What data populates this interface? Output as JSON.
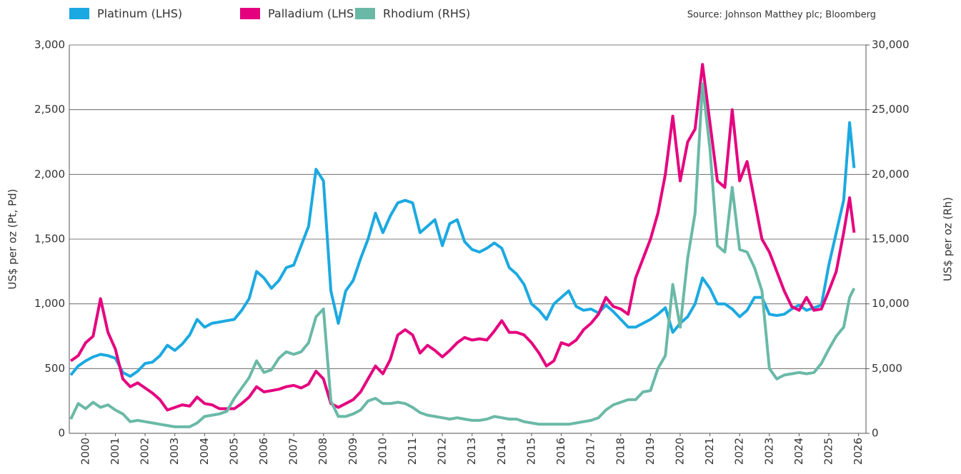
{
  "chart_data": {
    "type": "line",
    "source": "Source: Johnson Matthey plc; Bloomberg",
    "ylabel": "US$ per oz (Pt, Pd)",
    "y2label": "US$ per oz (Rh)",
    "x": [
      2000,
      2000.25,
      2000.5,
      2000.75,
      2001,
      2001.25,
      2001.5,
      2001.75,
      2002,
      2002.25,
      2002.5,
      2002.75,
      2003,
      2003.25,
      2003.5,
      2003.75,
      2004,
      2004.25,
      2004.5,
      2004.75,
      2005,
      2005.25,
      2005.5,
      2005.75,
      2006,
      2006.25,
      2006.5,
      2006.75,
      2007,
      2007.25,
      2007.5,
      2007.75,
      2008,
      2008.25,
      2008.5,
      2008.75,
      2009,
      2009.25,
      2009.5,
      2009.75,
      2010,
      2010.25,
      2010.5,
      2010.75,
      2011,
      2011.25,
      2011.5,
      2011.75,
      2012,
      2012.25,
      2012.5,
      2012.75,
      2013,
      2013.25,
      2013.5,
      2013.75,
      2014,
      2014.25,
      2014.5,
      2014.75,
      2015,
      2015.25,
      2015.5,
      2015.75,
      2016,
      2016.25,
      2016.5,
      2016.75,
      2017,
      2017.25,
      2017.5,
      2017.75,
      2018,
      2018.25,
      2018.5,
      2018.75,
      2019,
      2019.25,
      2019.5,
      2019.75,
      2020,
      2020.25,
      2020.5,
      2020.75,
      2021,
      2021.25,
      2021.5,
      2021.75,
      2022,
      2022.25,
      2022.5,
      2022.75,
      2023,
      2023.25,
      2023.5,
      2023.75,
      2024,
      2024.25,
      2024.5,
      2024.75,
      2025,
      2025.25,
      2025.5,
      2025.75,
      2026,
      2026.2,
      2026.35
    ],
    "series": [
      {
        "name": "Platinum (LHS)",
        "color": "#1ba9e1",
        "axis": "y",
        "values": [
          450,
          520,
          560,
          590,
          610,
          600,
          580,
          470,
          440,
          480,
          540,
          550,
          600,
          680,
          640,
          690,
          760,
          880,
          820,
          850,
          860,
          870,
          880,
          950,
          1040,
          1250,
          1200,
          1120,
          1180,
          1280,
          1300,
          1450,
          1600,
          2040,
          1950,
          1100,
          850,
          1100,
          1180,
          1350,
          1500,
          1700,
          1550,
          1680,
          1780,
          1800,
          1780,
          1550,
          1600,
          1650,
          1450,
          1620,
          1650,
          1480,
          1420,
          1400,
          1430,
          1470,
          1430,
          1280,
          1230,
          1150,
          1000,
          950,
          880,
          1000,
          1050,
          1100,
          980,
          950,
          960,
          930,
          990,
          940,
          880,
          820,
          820,
          850,
          880,
          920,
          970,
          780,
          850,
          900,
          1000,
          1200,
          1120,
          1000,
          1000,
          960,
          900,
          950,
          1050,
          1050,
          920,
          910,
          920,
          960,
          990,
          950,
          970,
          990,
          1300,
          1550,
          1800,
          2400,
          2050
        ]
      },
      {
        "name": "Palladium (LHS)",
        "color": "#e5007e",
        "axis": "y",
        "values": [
          560,
          600,
          700,
          750,
          1040,
          780,
          650,
          420,
          360,
          390,
          350,
          310,
          260,
          180,
          200,
          220,
          210,
          280,
          230,
          220,
          190,
          190,
          190,
          230,
          280,
          360,
          320,
          330,
          340,
          360,
          370,
          350,
          380,
          480,
          420,
          230,
          200,
          230,
          260,
          320,
          420,
          520,
          460,
          570,
          760,
          800,
          760,
          620,
          680,
          640,
          590,
          640,
          700,
          740,
          720,
          730,
          720,
          790,
          870,
          780,
          780,
          760,
          700,
          620,
          520,
          560,
          700,
          680,
          720,
          800,
          850,
          920,
          1050,
          980,
          960,
          920,
          1200,
          1350,
          1500,
          1700,
          2000,
          2450,
          1950,
          2250,
          2350,
          2850,
          2400,
          1950,
          1900,
          2500,
          1950,
          2100,
          1800,
          1500,
          1400,
          1250,
          1100,
          980,
          950,
          1050,
          950,
          960,
          1100,
          1250,
          1550,
          1820,
          1550
        ]
      },
      {
        "name": "Rhodium (RHS)",
        "color": "#6ab9a7",
        "axis": "y2",
        "values": [
          1100,
          2300,
          1900,
          2400,
          2000,
          2200,
          1800,
          1500,
          900,
          1000,
          900,
          800,
          700,
          600,
          500,
          500,
          500,
          800,
          1300,
          1400,
          1500,
          1700,
          2700,
          3500,
          4300,
          5600,
          4700,
          4900,
          5800,
          6300,
          6100,
          6300,
          7000,
          9000,
          9600,
          2500,
          1300,
          1300,
          1500,
          1800,
          2500,
          2700,
          2300,
          2300,
          2400,
          2300,
          2000,
          1600,
          1400,
          1300,
          1200,
          1100,
          1200,
          1100,
          1000,
          1000,
          1100,
          1300,
          1200,
          1100,
          1100,
          900,
          800,
          700,
          700,
          700,
          700,
          700,
          800,
          900,
          1000,
          1200,
          1800,
          2200,
          2400,
          2600,
          2600,
          3200,
          3300,
          5000,
          6000,
          11500,
          8200,
          13500,
          17000,
          27000,
          22000,
          14500,
          14000,
          19000,
          14200,
          14000,
          12800,
          11000,
          5000,
          4200,
          4500,
          4600,
          4700,
          4600,
          4700,
          5400,
          6500,
          7500,
          8200,
          10500,
          11200
        ]
      }
    ],
    "xlim": [
      1999.95,
      2026.75
    ],
    "xticks": [
      {
        "value": 2000.5,
        "label": "2000"
      },
      {
        "value": 2001.5,
        "label": "2001"
      },
      {
        "value": 2002.5,
        "label": "2002"
      },
      {
        "value": 2003.5,
        "label": "2003"
      },
      {
        "value": 2004.5,
        "label": "2004"
      },
      {
        "value": 2005.5,
        "label": "2005"
      },
      {
        "value": 2006.5,
        "label": "2006"
      },
      {
        "value": 2007.5,
        "label": "2007"
      },
      {
        "value": 2008.5,
        "label": "2008"
      },
      {
        "value": 2009.5,
        "label": "2009"
      },
      {
        "value": 2010.5,
        "label": "2010"
      },
      {
        "value": 2011.5,
        "label": "2011"
      },
      {
        "value": 2012.5,
        "label": "2012"
      },
      {
        "value": 2013.5,
        "label": "2013"
      },
      {
        "value": 2014.5,
        "label": "2014"
      },
      {
        "value": 2015.5,
        "label": "2015"
      },
      {
        "value": 2016.5,
        "label": "2016"
      },
      {
        "value": 2017.5,
        "label": "2017"
      },
      {
        "value": 2018.5,
        "label": "2018"
      },
      {
        "value": 2019.5,
        "label": "2019"
      },
      {
        "value": 2020.5,
        "label": "2020"
      },
      {
        "value": 2021.5,
        "label": "2021"
      },
      {
        "value": 2022.5,
        "label": "2022"
      },
      {
        "value": 2023.5,
        "label": "2023"
      },
      {
        "value": 2024.5,
        "label": "2024"
      },
      {
        "value": 2025.5,
        "label": "2025"
      },
      {
        "value": 2026.5,
        "label": "2026"
      }
    ],
    "ylim": [
      0,
      3000
    ],
    "yticks": [
      0,
      500,
      {
        "value": 1000,
        "label": "1,000"
      },
      {
        "value": 1500,
        "label": "1,500"
      },
      {
        "value": 2000,
        "label": "2,000"
      },
      {
        "value": 2500,
        "label": "2,500"
      },
      {
        "value": 3000,
        "label": "3,000"
      }
    ],
    "y2lim": [
      0,
      30000
    ],
    "y2ticks": [
      0,
      {
        "value": 5000,
        "label": "5,000"
      },
      {
        "value": 10000,
        "label": "10,000"
      },
      {
        "value": 15000,
        "label": "15,000"
      },
      {
        "value": 20000,
        "label": "20,000"
      },
      {
        "value": 25000,
        "label": "25,000"
      },
      {
        "value": 30000,
        "label": "30,000"
      }
    ],
    "grid": true,
    "legend": "top-left"
  }
}
